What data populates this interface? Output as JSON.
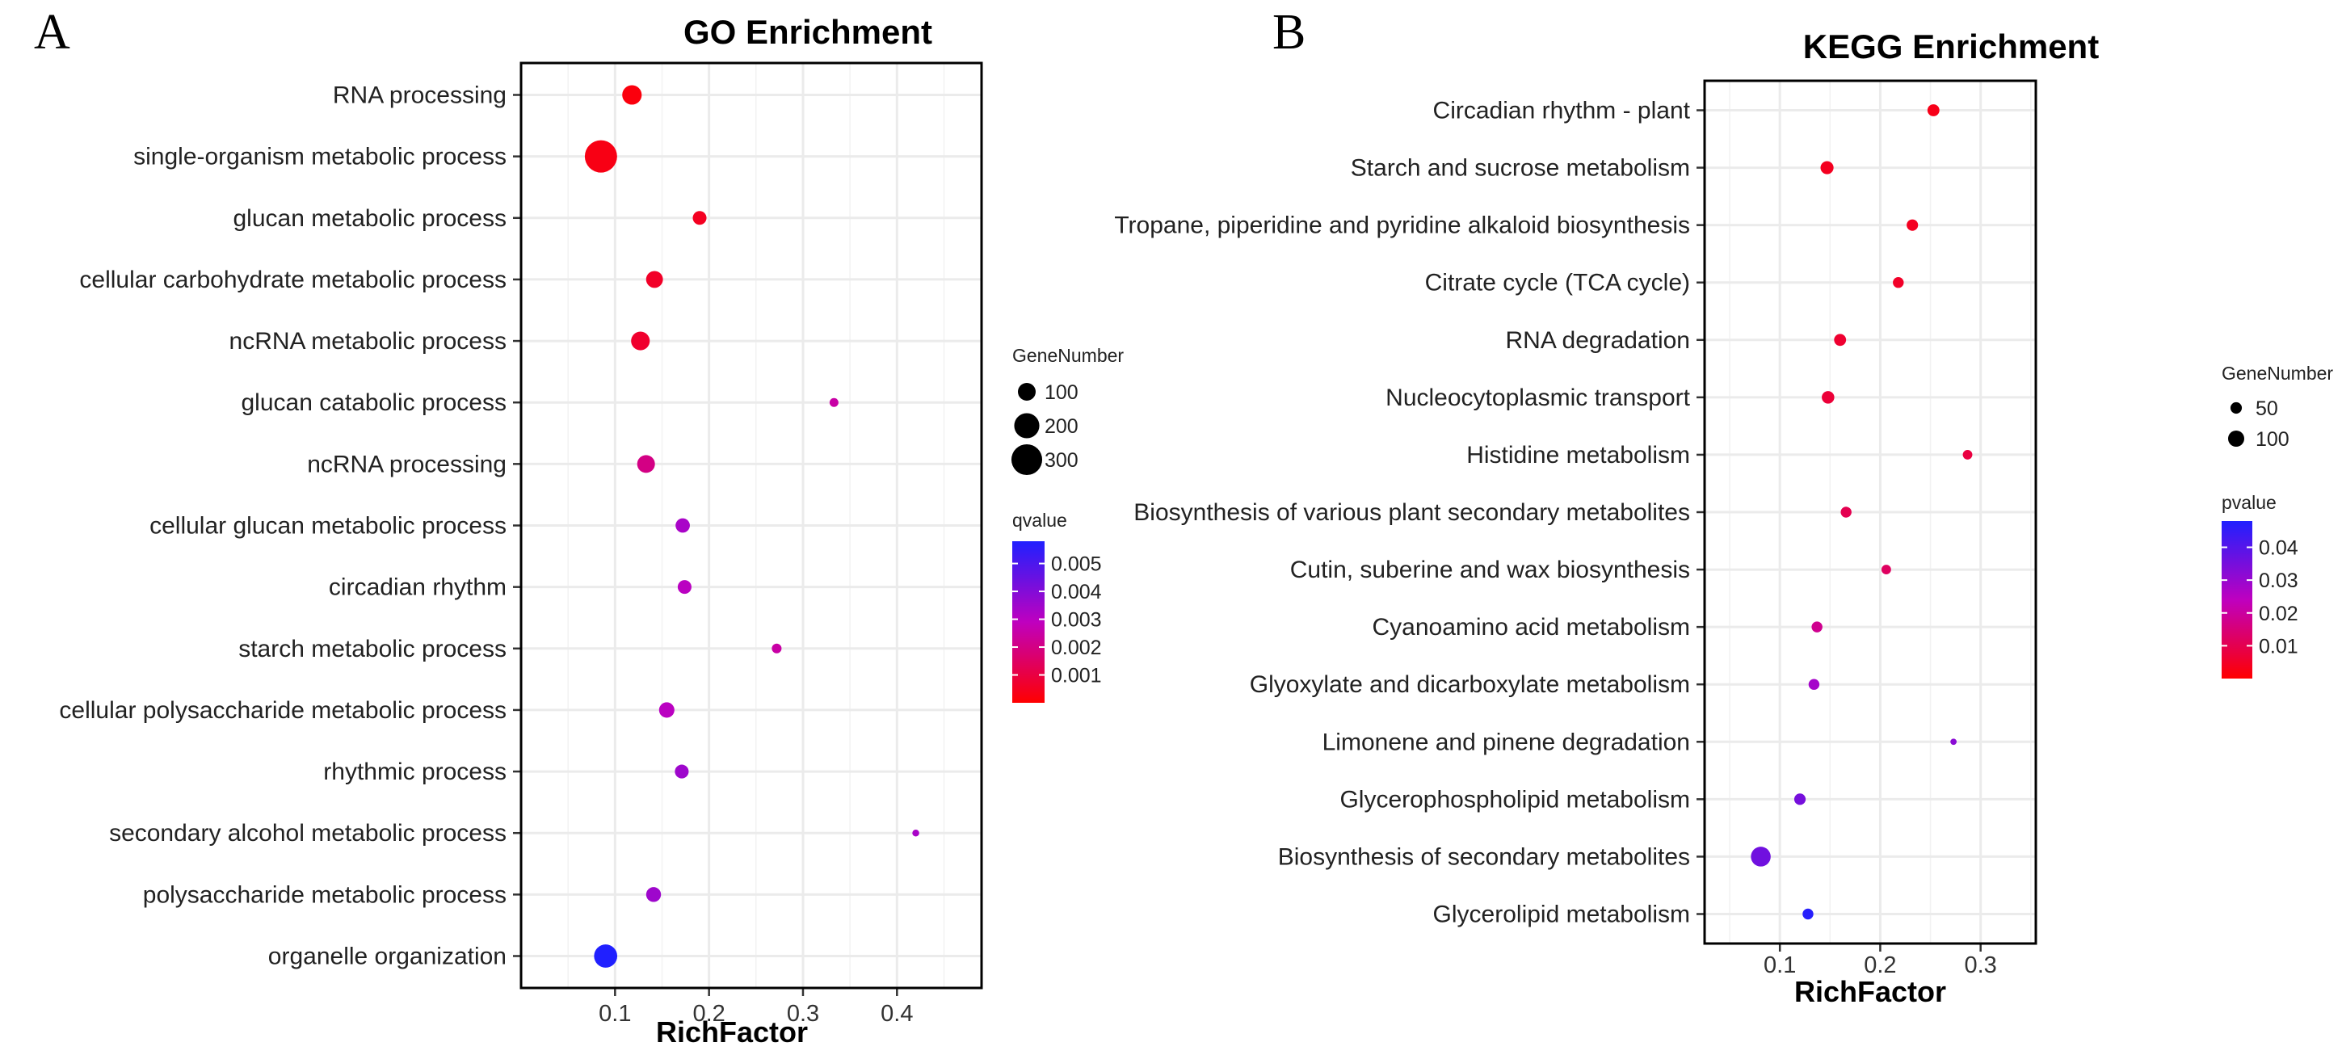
{
  "colors": {
    "low": "#ff0000",
    "mid": "#bf00bf",
    "high": "#2020ff",
    "grid": "#ebebeb"
  },
  "chart_data": [
    {
      "type": "scatter",
      "panel": "A",
      "title": "GO Enrichment",
      "xlabel": "RichFactor",
      "xlim": [
        0.0,
        0.49
      ],
      "xticks": [
        0.1,
        0.2,
        0.3,
        0.4
      ],
      "xtick_labels": [
        "0.1",
        "0.2",
        "0.3",
        "0.4"
      ],
      "categories": [
        "RNA processing",
        "single-organism metabolic process",
        "glucan metabolic process",
        "cellular carbohydrate metabolic process",
        "ncRNA metabolic process",
        "glucan catabolic process",
        "ncRNA processing",
        "cellular glucan metabolic process",
        "circadian rhythm",
        "starch metabolic process",
        "cellular polysaccharide metabolic process",
        "rhythmic process",
        "secondary alcohol metabolic process",
        "polysaccharide metabolic process",
        "organelle organization"
      ],
      "x": [
        0.118,
        0.085,
        0.19,
        0.142,
        0.127,
        0.333,
        0.133,
        0.172,
        0.174,
        0.272,
        0.155,
        0.171,
        0.42,
        0.141,
        0.09
      ],
      "size": [
        120,
        330,
        60,
        90,
        110,
        25,
        100,
        65,
        60,
        30,
        75,
        60,
        15,
        70,
        170
      ],
      "color": [
        0.0002,
        0.0003,
        0.0005,
        0.0006,
        0.0007,
        0.0025,
        0.002,
        0.0033,
        0.003,
        0.0025,
        0.003,
        0.0035,
        0.0033,
        0.0035,
        0.0058
      ],
      "size_legend": {
        "title": "GeneNumber",
        "values": [
          100,
          200,
          300
        ],
        "labels": [
          "100",
          "200",
          "300"
        ]
      },
      "color_legend": {
        "title": "qvalue",
        "range": [
          0.0,
          0.0058
        ],
        "ticks": [
          0.005,
          0.004,
          0.003,
          0.002,
          0.001
        ],
        "labels": [
          "0.005",
          "0.004",
          "0.003",
          "0.002",
          "0.001"
        ]
      }
    },
    {
      "type": "scatter",
      "panel": "B",
      "title": "KEGG Enrichment",
      "xlabel": "RichFactor",
      "xlim": [
        0.025,
        0.355
      ],
      "xticks": [
        0.1,
        0.2,
        0.3
      ],
      "xtick_labels": [
        "0.1",
        "0.2",
        "0.3"
      ],
      "categories": [
        "Circadian rhythm - plant",
        "Starch and sucrose metabolism",
        "Tropane, piperidine and pyridine alkaloid biosynthesis",
        "Citrate cycle (TCA cycle)",
        "RNA degradation",
        "Nucleocytoplasmic transport",
        "Histidine metabolism",
        "Biosynthesis of various plant secondary metabolites",
        "Cutin, suberine and wax biosynthesis",
        "Cyanoamino acid metabolism",
        "Glyoxylate and dicarboxylate metabolism",
        "Limonene and pinene degradation",
        "Glycerophospholipid metabolism",
        "Biosynthesis of secondary metabolites",
        "Glycerolipid metabolism"
      ],
      "x": [
        0.253,
        0.147,
        0.232,
        0.218,
        0.16,
        0.148,
        0.287,
        0.166,
        0.206,
        0.137,
        0.134,
        0.273,
        0.12,
        0.081,
        0.128
      ],
      "size": [
        55,
        65,
        50,
        45,
        55,
        60,
        35,
        45,
        35,
        45,
        45,
        15,
        50,
        150,
        45
      ],
      "color": [
        0.003,
        0.004,
        0.004,
        0.005,
        0.006,
        0.007,
        0.008,
        0.01,
        0.012,
        0.018,
        0.028,
        0.032,
        0.035,
        0.036,
        0.047
      ],
      "size_legend": {
        "title": "GeneNumber",
        "values": [
          50,
          100
        ],
        "labels": [
          "50",
          "100"
        ]
      },
      "color_legend": {
        "title": "pvalue",
        "range": [
          0.0,
          0.048
        ],
        "ticks": [
          0.04,
          0.03,
          0.02,
          0.01
        ],
        "labels": [
          "0.04",
          "0.03",
          "0.02",
          "0.01"
        ]
      }
    }
  ]
}
